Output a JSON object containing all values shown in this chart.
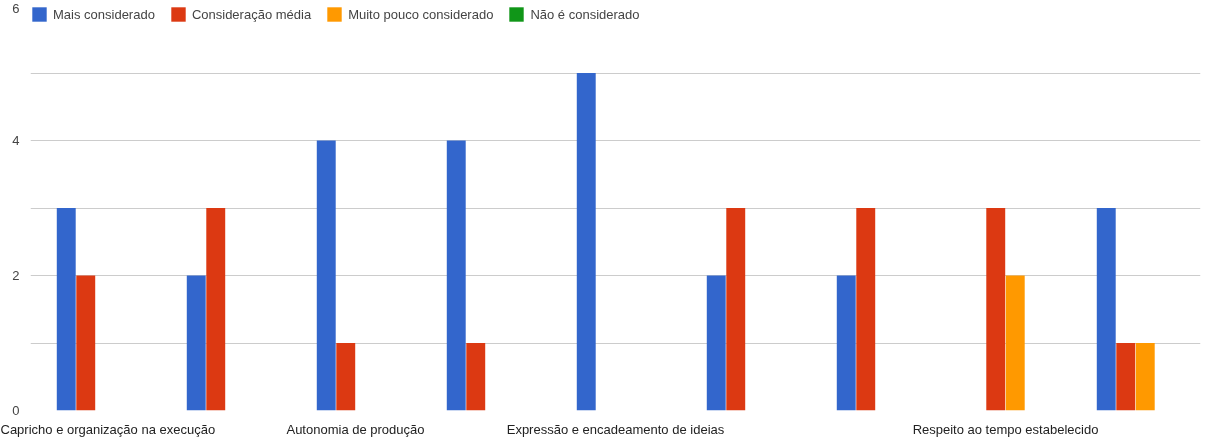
{
  "chart_data": {
    "type": "bar",
    "categories": [
      "Capricho e organização na execução",
      null,
      "Autonomia de produção",
      null,
      "Expressão e encadeamento de ideias",
      null,
      null,
      "Respeito ao tempo estabelecido",
      null
    ],
    "series": [
      {
        "name": "Mais considerado",
        "color": "#3366cc",
        "values": [
          3,
          2,
          4,
          4,
          5,
          2,
          2,
          0,
          3
        ]
      },
      {
        "name": "Consideração média",
        "color": "#dc3912",
        "values": [
          2,
          3,
          1,
          1,
          0,
          3,
          3,
          3,
          1
        ]
      },
      {
        "name": "Muito pouco considerado",
        "color": "#ff9900",
        "values": [
          0,
          0,
          0,
          0,
          0,
          0,
          0,
          2,
          1
        ]
      },
      {
        "name": "Não é considerado",
        "color": "#109618",
        "values": [
          0,
          0,
          0,
          0,
          0,
          0,
          0,
          0,
          0
        ]
      }
    ],
    "ylim": [
      0,
      6
    ],
    "yticks": [
      0,
      {
        "value": 1,
        "label": null
      },
      2,
      {
        "value": 3,
        "label": null
      },
      4,
      {
        "value": 5,
        "label": null
      },
      6
    ],
    "grid": "y",
    "legend": "top left"
  }
}
